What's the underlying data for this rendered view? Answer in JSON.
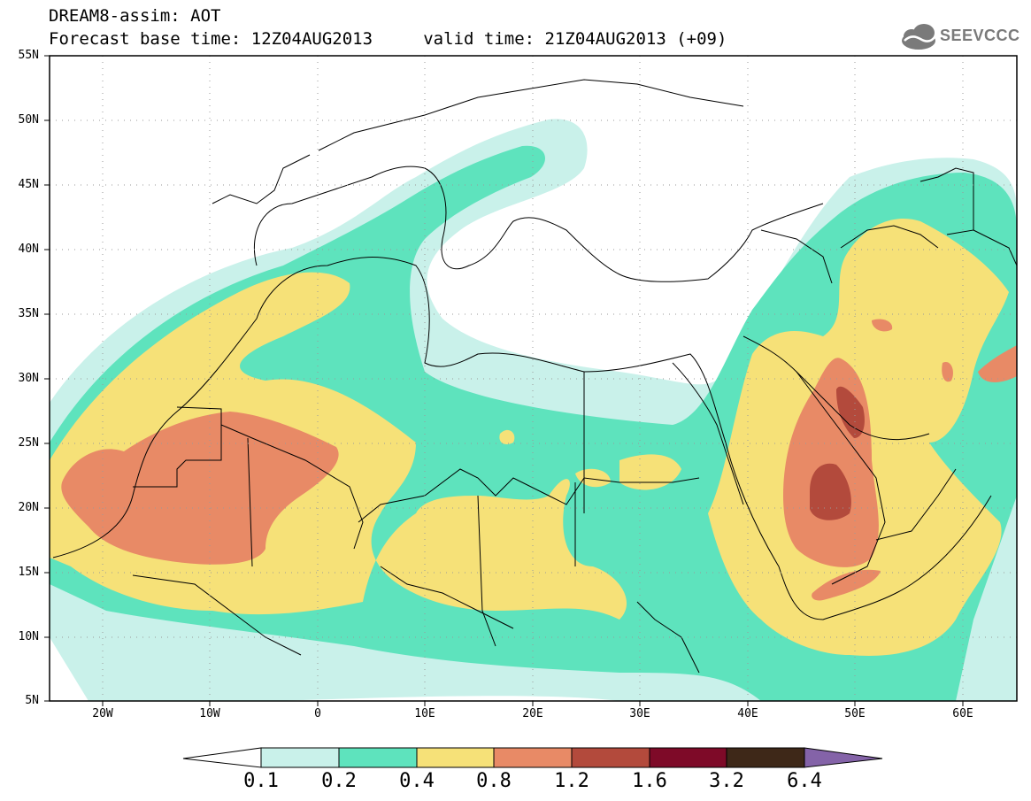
{
  "header": {
    "title_line1": "DREAM8-assim: AOT",
    "title_line2": "Forecast base time: 12Z04AUG2013     valid time: 21Z04AUG2013 (+09)",
    "logo_text": "SEEVCCC"
  },
  "map": {
    "lat_labels": [
      "55N",
      "50N",
      "45N",
      "40N",
      "35N",
      "30N",
      "25N",
      "20N",
      "15N",
      "10N",
      "5N"
    ],
    "lon_labels": [
      "20W",
      "10W",
      "0",
      "10E",
      "20E",
      "30E",
      "40E",
      "50E",
      "60E"
    ],
    "lon_range": [
      -25,
      65
    ],
    "lat_range": [
      5,
      55
    ]
  },
  "colorbar": {
    "labels": [
      "0.1",
      "0.2",
      "0.4",
      "0.8",
      "1.2",
      "1.6",
      "3.2",
      "6.4"
    ],
    "colors": [
      "#ffffff",
      "#c9f1ea",
      "#5ee3bd",
      "#f6e178",
      "#e88a66",
      "#b34a3c",
      "#7e0a28",
      "#3e2818",
      "#8463a8"
    ]
  },
  "colors": {
    "aot_0_1": "#c9f1ea",
    "aot_0_2": "#5ee3bd",
    "aot_0_4": "#f6e178",
    "aot_0_8": "#e88a66",
    "aot_1_2": "#b34a3c",
    "aot_1_6": "#7e0a28",
    "aot_3_2": "#3e2818",
    "aot_6_4": "#8463a8"
  }
}
